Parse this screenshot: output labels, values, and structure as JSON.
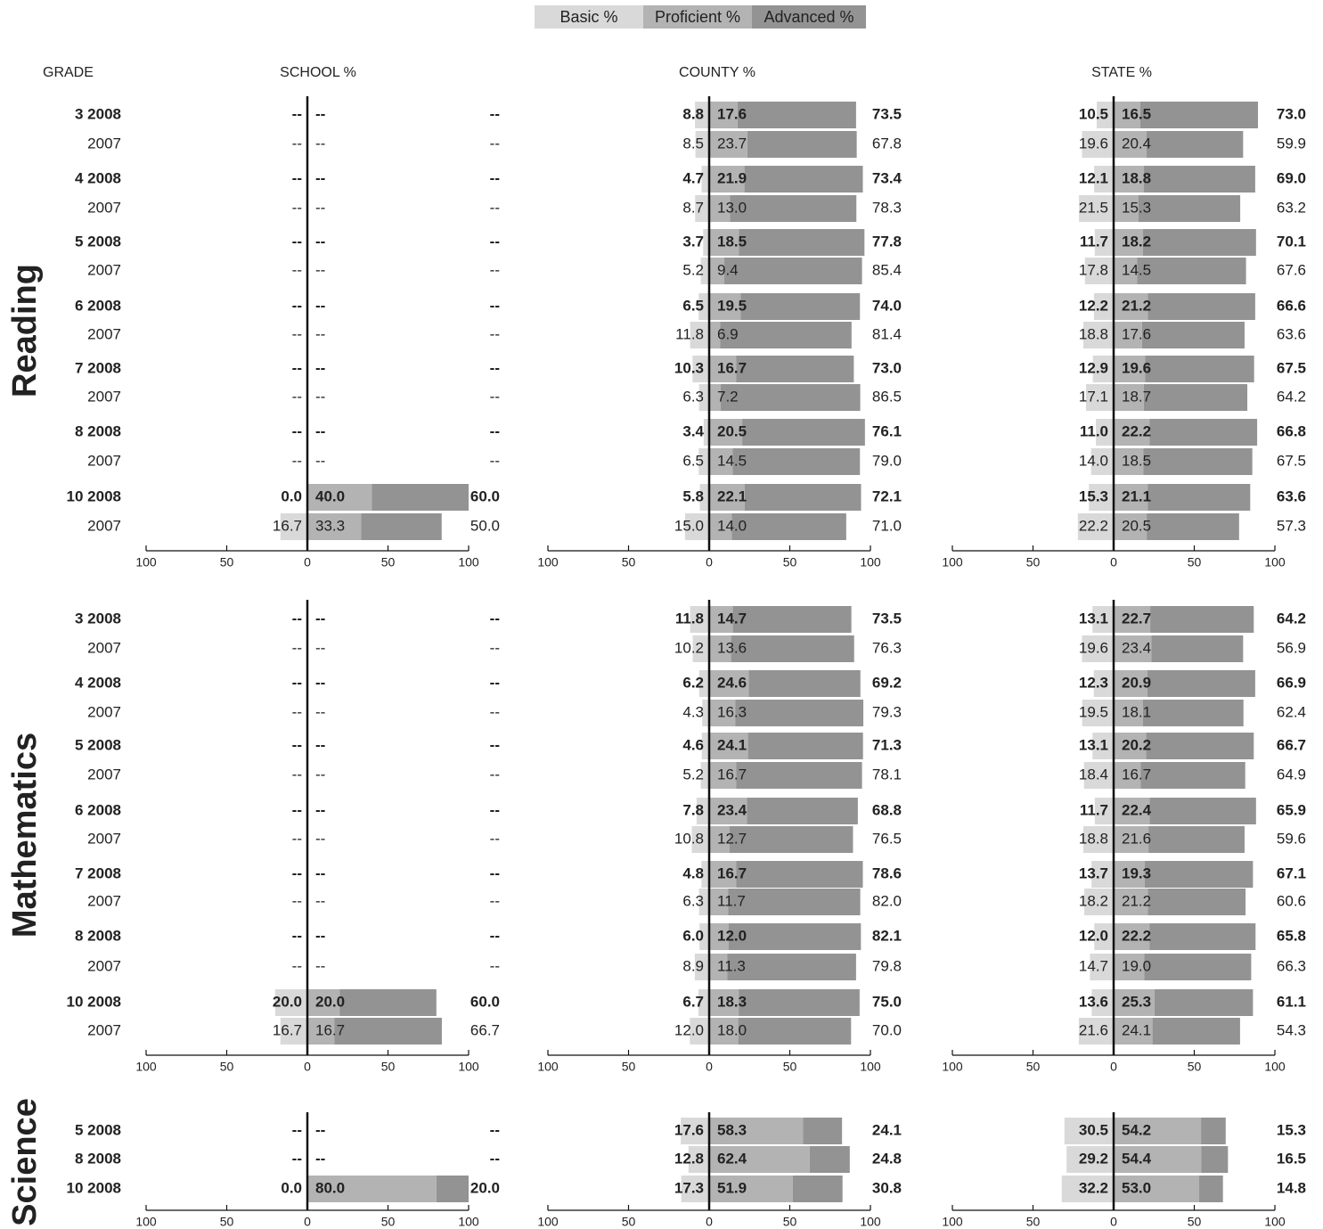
{
  "chart_data": {
    "type": "bar",
    "orientation": "horizontal-stacked-diverging",
    "legend": {
      "position": "top-center",
      "items": [
        {
          "key": "basic",
          "label": "Basic %",
          "color": "#d9d9d9"
        },
        {
          "key": "proficient",
          "label": "Proficient %",
          "color": "#b3b3b3"
        },
        {
          "key": "advanced",
          "label": "Advanced %",
          "color": "#939393"
        }
      ]
    },
    "row_header": "GRADE",
    "columns": [
      {
        "key": "school",
        "label": "SCHOOL %"
      },
      {
        "key": "county",
        "label": "COUNTY %"
      },
      {
        "key": "state",
        "label": "STATE %"
      }
    ],
    "axis_ticks": [
      "100",
      "50",
      "0",
      "50",
      "100"
    ],
    "subjects": [
      {
        "name": "Reading",
        "rows": [
          {
            "grade": "3 2008",
            "bold": true,
            "school": {
              "basic": "--",
              "proficient": "--",
              "advanced": "--"
            },
            "county": {
              "basic": "8.8",
              "proficient": "17.6",
              "advanced": "73.5"
            },
            "state": {
              "basic": "10.5",
              "proficient": "16.5",
              "advanced": "73.0"
            }
          },
          {
            "grade": "2007",
            "bold": false,
            "school": {
              "basic": "--",
              "proficient": "--",
              "advanced": "--"
            },
            "county": {
              "basic": "8.5",
              "proficient": "23.7",
              "advanced": "67.8"
            },
            "state": {
              "basic": "19.6",
              "proficient": "20.4",
              "advanced": "59.9"
            }
          },
          {
            "grade": "4 2008",
            "bold": true,
            "school": {
              "basic": "--",
              "proficient": "--",
              "advanced": "--"
            },
            "county": {
              "basic": "4.7",
              "proficient": "21.9",
              "advanced": "73.4"
            },
            "state": {
              "basic": "12.1",
              "proficient": "18.8",
              "advanced": "69.0"
            }
          },
          {
            "grade": "2007",
            "bold": false,
            "school": {
              "basic": "--",
              "proficient": "--",
              "advanced": "--"
            },
            "county": {
              "basic": "8.7",
              "proficient": "13.0",
              "advanced": "78.3"
            },
            "state": {
              "basic": "21.5",
              "proficient": "15.3",
              "advanced": "63.2"
            }
          },
          {
            "grade": "5 2008",
            "bold": true,
            "school": {
              "basic": "--",
              "proficient": "--",
              "advanced": "--"
            },
            "county": {
              "basic": "3.7",
              "proficient": "18.5",
              "advanced": "77.8"
            },
            "state": {
              "basic": "11.7",
              "proficient": "18.2",
              "advanced": "70.1"
            }
          },
          {
            "grade": "2007",
            "bold": false,
            "school": {
              "basic": "--",
              "proficient": "--",
              "advanced": "--"
            },
            "county": {
              "basic": "5.2",
              "proficient": "9.4",
              "advanced": "85.4"
            },
            "state": {
              "basic": "17.8",
              "proficient": "14.5",
              "advanced": "67.6"
            }
          },
          {
            "grade": "6 2008",
            "bold": true,
            "school": {
              "basic": "--",
              "proficient": "--",
              "advanced": "--"
            },
            "county": {
              "basic": "6.5",
              "proficient": "19.5",
              "advanced": "74.0"
            },
            "state": {
              "basic": "12.2",
              "proficient": "21.2",
              "advanced": "66.6"
            }
          },
          {
            "grade": "2007",
            "bold": false,
            "school": {
              "basic": "--",
              "proficient": "--",
              "advanced": "--"
            },
            "county": {
              "basic": "11.8",
              "proficient": "6.9",
              "advanced": "81.4"
            },
            "state": {
              "basic": "18.8",
              "proficient": "17.6",
              "advanced": "63.6"
            }
          },
          {
            "grade": "7 2008",
            "bold": true,
            "school": {
              "basic": "--",
              "proficient": "--",
              "advanced": "--"
            },
            "county": {
              "basic": "10.3",
              "proficient": "16.7",
              "advanced": "73.0"
            },
            "state": {
              "basic": "12.9",
              "proficient": "19.6",
              "advanced": "67.5"
            }
          },
          {
            "grade": "2007",
            "bold": false,
            "school": {
              "basic": "--",
              "proficient": "--",
              "advanced": "--"
            },
            "county": {
              "basic": "6.3",
              "proficient": "7.2",
              "advanced": "86.5"
            },
            "state": {
              "basic": "17.1",
              "proficient": "18.7",
              "advanced": "64.2"
            }
          },
          {
            "grade": "8 2008",
            "bold": true,
            "school": {
              "basic": "--",
              "proficient": "--",
              "advanced": "--"
            },
            "county": {
              "basic": "3.4",
              "proficient": "20.5",
              "advanced": "76.1"
            },
            "state": {
              "basic": "11.0",
              "proficient": "22.2",
              "advanced": "66.8"
            }
          },
          {
            "grade": "2007",
            "bold": false,
            "school": {
              "basic": "--",
              "proficient": "--",
              "advanced": "--"
            },
            "county": {
              "basic": "6.5",
              "proficient": "14.5",
              "advanced": "79.0"
            },
            "state": {
              "basic": "14.0",
              "proficient": "18.5",
              "advanced": "67.5"
            }
          },
          {
            "grade": "10 2008",
            "bold": true,
            "school": {
              "basic": "0.0",
              "proficient": "40.0",
              "advanced": "60.0"
            },
            "county": {
              "basic": "5.8",
              "proficient": "22.1",
              "advanced": "72.1"
            },
            "state": {
              "basic": "15.3",
              "proficient": "21.1",
              "advanced": "63.6"
            }
          },
          {
            "grade": "2007",
            "bold": false,
            "school": {
              "basic": "16.7",
              "proficient": "33.3",
              "advanced": "50.0"
            },
            "county": {
              "basic": "15.0",
              "proficient": "14.0",
              "advanced": "71.0"
            },
            "state": {
              "basic": "22.2",
              "proficient": "20.5",
              "advanced": "57.3"
            }
          }
        ]
      },
      {
        "name": "Mathematics",
        "rows": [
          {
            "grade": "3 2008",
            "bold": true,
            "school": {
              "basic": "--",
              "proficient": "--",
              "advanced": "--"
            },
            "county": {
              "basic": "11.8",
              "proficient": "14.7",
              "advanced": "73.5"
            },
            "state": {
              "basic": "13.1",
              "proficient": "22.7",
              "advanced": "64.2"
            }
          },
          {
            "grade": "2007",
            "bold": false,
            "school": {
              "basic": "--",
              "proficient": "--",
              "advanced": "--"
            },
            "county": {
              "basic": "10.2",
              "proficient": "13.6",
              "advanced": "76.3"
            },
            "state": {
              "basic": "19.6",
              "proficient": "23.4",
              "advanced": "56.9"
            }
          },
          {
            "grade": "4 2008",
            "bold": true,
            "school": {
              "basic": "--",
              "proficient": "--",
              "advanced": "--"
            },
            "county": {
              "basic": "6.2",
              "proficient": "24.6",
              "advanced": "69.2"
            },
            "state": {
              "basic": "12.3",
              "proficient": "20.9",
              "advanced": "66.9"
            }
          },
          {
            "grade": "2007",
            "bold": false,
            "school": {
              "basic": "--",
              "proficient": "--",
              "advanced": "--"
            },
            "county": {
              "basic": "4.3",
              "proficient": "16.3",
              "advanced": "79.3"
            },
            "state": {
              "basic": "19.5",
              "proficient": "18.1",
              "advanced": "62.4"
            }
          },
          {
            "grade": "5 2008",
            "bold": true,
            "school": {
              "basic": "--",
              "proficient": "--",
              "advanced": "--"
            },
            "county": {
              "basic": "4.6",
              "proficient": "24.1",
              "advanced": "71.3"
            },
            "state": {
              "basic": "13.1",
              "proficient": "20.2",
              "advanced": "66.7"
            }
          },
          {
            "grade": "2007",
            "bold": false,
            "school": {
              "basic": "--",
              "proficient": "--",
              "advanced": "--"
            },
            "county": {
              "basic": "5.2",
              "proficient": "16.7",
              "advanced": "78.1"
            },
            "state": {
              "basic": "18.4",
              "proficient": "16.7",
              "advanced": "64.9"
            }
          },
          {
            "grade": "6 2008",
            "bold": true,
            "school": {
              "basic": "--",
              "proficient": "--",
              "advanced": "--"
            },
            "county": {
              "basic": "7.8",
              "proficient": "23.4",
              "advanced": "68.8"
            },
            "state": {
              "basic": "11.7",
              "proficient": "22.4",
              "advanced": "65.9"
            }
          },
          {
            "grade": "2007",
            "bold": false,
            "school": {
              "basic": "--",
              "proficient": "--",
              "advanced": "--"
            },
            "county": {
              "basic": "10.8",
              "proficient": "12.7",
              "advanced": "76.5"
            },
            "state": {
              "basic": "18.8",
              "proficient": "21.6",
              "advanced": "59.6"
            }
          },
          {
            "grade": "7 2008",
            "bold": true,
            "school": {
              "basic": "--",
              "proficient": "--",
              "advanced": "--"
            },
            "county": {
              "basic": "4.8",
              "proficient": "16.7",
              "advanced": "78.6"
            },
            "state": {
              "basic": "13.7",
              "proficient": "19.3",
              "advanced": "67.1"
            }
          },
          {
            "grade": "2007",
            "bold": false,
            "school": {
              "basic": "--",
              "proficient": "--",
              "advanced": "--"
            },
            "county": {
              "basic": "6.3",
              "proficient": "11.7",
              "advanced": "82.0"
            },
            "state": {
              "basic": "18.2",
              "proficient": "21.2",
              "advanced": "60.6"
            }
          },
          {
            "grade": "8 2008",
            "bold": true,
            "school": {
              "basic": "--",
              "proficient": "--",
              "advanced": "--"
            },
            "county": {
              "basic": "6.0",
              "proficient": "12.0",
              "advanced": "82.1"
            },
            "state": {
              "basic": "12.0",
              "proficient": "22.2",
              "advanced": "65.8"
            }
          },
          {
            "grade": "2007",
            "bold": false,
            "school": {
              "basic": "--",
              "proficient": "--",
              "advanced": "--"
            },
            "county": {
              "basic": "8.9",
              "proficient": "11.3",
              "advanced": "79.8"
            },
            "state": {
              "basic": "14.7",
              "proficient": "19.0",
              "advanced": "66.3"
            }
          },
          {
            "grade": "10 2008",
            "bold": true,
            "school": {
              "basic": "20.0",
              "proficient": "20.0",
              "advanced": "60.0"
            },
            "county": {
              "basic": "6.7",
              "proficient": "18.3",
              "advanced": "75.0"
            },
            "state": {
              "basic": "13.6",
              "proficient": "25.3",
              "advanced": "61.1"
            }
          },
          {
            "grade": "2007",
            "bold": false,
            "school": {
              "basic": "16.7",
              "proficient": "16.7",
              "advanced": "66.7"
            },
            "county": {
              "basic": "12.0",
              "proficient": "18.0",
              "advanced": "70.0"
            },
            "state": {
              "basic": "21.6",
              "proficient": "24.1",
              "advanced": "54.3"
            }
          }
        ]
      },
      {
        "name": "Science",
        "rows": [
          {
            "grade": "5 2008",
            "bold": true,
            "school": {
              "basic": "--",
              "proficient": "--",
              "advanced": "--"
            },
            "county": {
              "basic": "17.6",
              "proficient": "58.3",
              "advanced": "24.1"
            },
            "state": {
              "basic": "30.5",
              "proficient": "54.2",
              "advanced": "15.3"
            }
          },
          {
            "grade": "8 2008",
            "bold": true,
            "school": {
              "basic": "--",
              "proficient": "--",
              "advanced": "--"
            },
            "county": {
              "basic": "12.8",
              "proficient": "62.4",
              "advanced": "24.8"
            },
            "state": {
              "basic": "29.2",
              "proficient": "54.4",
              "advanced": "16.5"
            }
          },
          {
            "grade": "10 2008",
            "bold": true,
            "school": {
              "basic": "0.0",
              "proficient": "80.0",
              "advanced": "20.0"
            },
            "county": {
              "basic": "17.3",
              "proficient": "51.9",
              "advanced": "30.8"
            },
            "state": {
              "basic": "32.2",
              "proficient": "53.0",
              "advanced": "14.8"
            }
          }
        ]
      }
    ]
  }
}
